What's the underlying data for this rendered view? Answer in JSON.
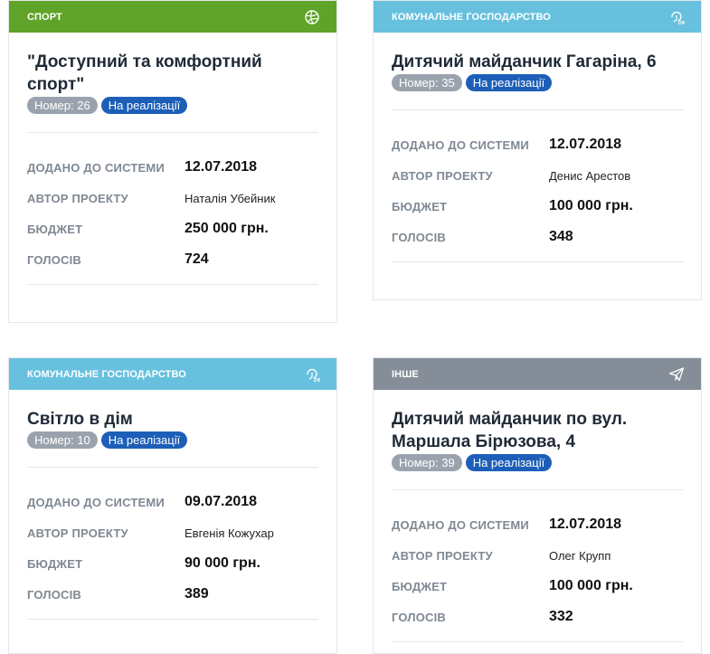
{
  "colors": {
    "sport": "#5fa428",
    "communal": "#67c1de",
    "other": "#858e98",
    "status_badge": "#1d5fb8",
    "number_badge": "#9aa3ad"
  },
  "labels": {
    "added": "ДОДАНО ДО СИСТЕМИ",
    "author": "АВТОР ПРОЕКТУ",
    "budget": "БЮДЖЕТ",
    "votes": "ГОЛОСІВ"
  },
  "projects": [
    {
      "category": "СПОРТ",
      "icon": "volleyball-icon",
      "title": "\"Доступний та комфортний спорт\"",
      "number": "Номер: 26",
      "status": "На реалізації",
      "added": "12.07.2018",
      "author": "Наталія Убейник",
      "budget": "250 000 грн.",
      "votes": "724"
    },
    {
      "category": "КОМУНАЛЬНЕ ГОСПОДАРСТВО",
      "icon": "communal-icon",
      "title": "Дитячий майданчик Гагаріна, 6",
      "number": "Номер: 35",
      "status": "На реалізації",
      "added": "12.07.2018",
      "author": "Денис Арестов",
      "budget": "100 000 грн.",
      "votes": "348"
    },
    {
      "category": "КОМУНАЛЬНЕ ГОСПОДАРСТВО",
      "icon": "communal-icon",
      "title": "Світло в дім",
      "number": "Номер: 10",
      "status": "На реалізації",
      "added": "09.07.2018",
      "author": "Евгенія Кожухар",
      "budget": "90 000 грн.",
      "votes": "389"
    },
    {
      "category": "ІНШЕ",
      "icon": "paper-plane-icon",
      "title": "Дитячий майданчик по вул. Маршала Бірюзова, 4",
      "number": "Номер: 39",
      "status": "На реалізації",
      "added": "12.07.2018",
      "author": "Олег Крупп",
      "budget": "100 000 грн.",
      "votes": "332"
    }
  ]
}
